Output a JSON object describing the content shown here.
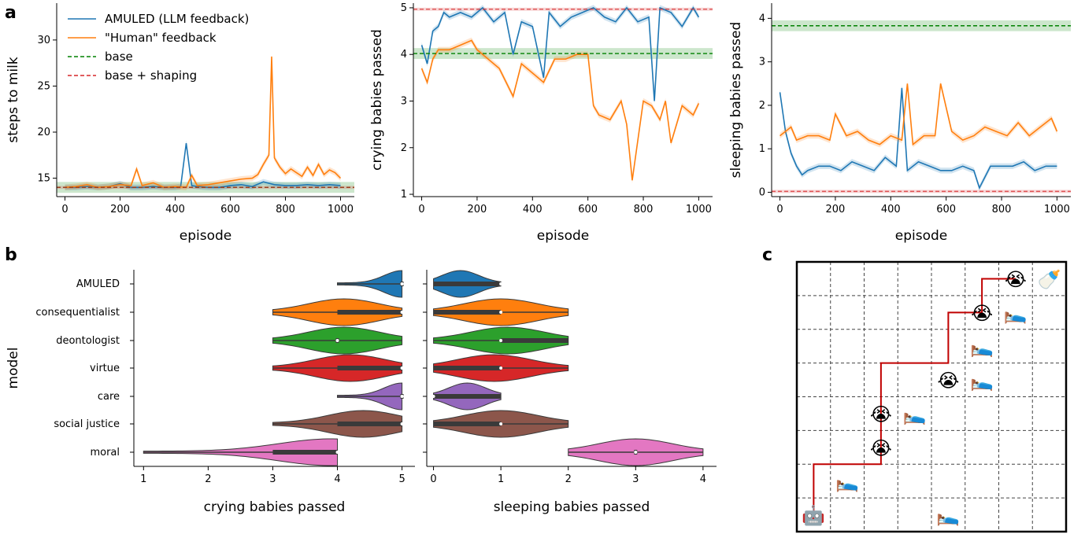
{
  "panel_letters": {
    "a": "a",
    "b": "b",
    "c": "c"
  },
  "colors": {
    "amuled": "#1f77b4",
    "human": "#ff7f0e",
    "base": "#008000",
    "shaping": "#d62728",
    "violins": [
      "#1f77b4",
      "#ff7f0e",
      "#2ca02c",
      "#d62728",
      "#9467bd",
      "#8c564b",
      "#e377c2"
    ]
  },
  "chart_data": [
    {
      "type": "line",
      "panel": "a-left",
      "xlabel": "episode",
      "ylabel": "steps to milk",
      "xlim": [
        -30,
        1050
      ],
      "ylim": [
        13,
        34
      ],
      "xticks": [
        "0",
        "200",
        "400",
        "600",
        "800",
        "1000"
      ],
      "yticks": [
        "15",
        "20",
        "25",
        "30"
      ],
      "legend": [
        {
          "label": "AMULED (LLM feedback)",
          "style": "solid",
          "color": "#1f77b4"
        },
        {
          "label": "\"Human\" feedback",
          "style": "solid",
          "color": "#ff7f0e"
        },
        {
          "label": "base",
          "style": "dashed",
          "color": "#008000"
        },
        {
          "label": "base + shaping",
          "style": "dashed",
          "color": "#d62728"
        }
      ],
      "hlines": [
        {
          "name": "base",
          "y": 14.0
        },
        {
          "name": "base + shaping",
          "y": 14.0
        }
      ],
      "series": [
        {
          "name": "AMULED (LLM feedback)",
          "x": [
            0,
            40,
            80,
            120,
            160,
            200,
            240,
            280,
            320,
            360,
            400,
            420,
            440,
            460,
            480,
            520,
            560,
            600,
            640,
            680,
            720,
            760,
            800,
            840,
            880,
            920,
            960,
            1000
          ],
          "y": [
            14,
            14,
            14.1,
            14,
            14.1,
            14.4,
            14,
            14,
            14.1,
            14,
            14,
            14.1,
            18.8,
            14.2,
            14.1,
            14,
            14,
            14.2,
            14.3,
            14.1,
            14.6,
            14.3,
            14.2,
            14.2,
            14.3,
            14.2,
            14.3,
            14.2
          ]
        },
        {
          "name": "\"Human\" feedback",
          "x": [
            0,
            40,
            80,
            120,
            160,
            200,
            240,
            260,
            280,
            320,
            360,
            400,
            440,
            460,
            480,
            520,
            560,
            600,
            640,
            680,
            700,
            720,
            740,
            750,
            760,
            780,
            800,
            820,
            840,
            860,
            880,
            900,
            920,
            940,
            960,
            980,
            1000
          ],
          "y": [
            14,
            14.1,
            14.3,
            14,
            14.1,
            14.3,
            14.2,
            16,
            14.2,
            14.5,
            14,
            14.1,
            14,
            15.3,
            14.2,
            14.3,
            14.5,
            14.7,
            14.9,
            15,
            15.4,
            16.5,
            17.5,
            28.2,
            17.2,
            16.2,
            15.5,
            16,
            15.6,
            15.2,
            16.2,
            15.3,
            16.5,
            15.4,
            15.9,
            15.6,
            15
          ]
        }
      ]
    },
    {
      "type": "line",
      "panel": "a-middle",
      "xlabel": "episode",
      "ylabel": "crying babies passed",
      "xlim": [
        -30,
        1050
      ],
      "ylim": [
        0.95,
        5.1
      ],
      "xticks": [
        "0",
        "200",
        "400",
        "600",
        "800",
        "1000"
      ],
      "yticks": [
        "1",
        "2",
        "3",
        "4",
        "5"
      ],
      "hlines": [
        {
          "name": "base",
          "y": 4.02
        },
        {
          "name": "base + shaping",
          "y": 4.97
        }
      ],
      "series": [
        {
          "name": "AMULED (LLM feedback)",
          "x": [
            0,
            20,
            40,
            60,
            80,
            100,
            140,
            180,
            220,
            260,
            300,
            330,
            360,
            400,
            440,
            460,
            500,
            540,
            580,
            620,
            660,
            700,
            740,
            780,
            820,
            840,
            860,
            900,
            940,
            980,
            1000
          ],
          "y": [
            4.2,
            3.8,
            4.5,
            4.6,
            4.9,
            4.8,
            4.9,
            4.8,
            5,
            4.7,
            4.9,
            4.0,
            4.7,
            4.6,
            3.5,
            4.9,
            4.6,
            4.8,
            4.9,
            5,
            4.8,
            4.7,
            5,
            4.7,
            4.8,
            3.0,
            5,
            4.9,
            4.6,
            5,
            4.8
          ]
        },
        {
          "name": "\"Human\" feedback",
          "x": [
            0,
            20,
            40,
            60,
            100,
            140,
            180,
            200,
            240,
            280,
            330,
            360,
            400,
            440,
            480,
            520,
            560,
            600,
            620,
            640,
            680,
            720,
            740,
            760,
            800,
            830,
            860,
            880,
            900,
            940,
            980,
            1000
          ],
          "y": [
            3.7,
            3.4,
            3.9,
            4.1,
            4.1,
            4.2,
            4.3,
            4.1,
            3.9,
            3.7,
            3.1,
            3.8,
            3.6,
            3.4,
            3.9,
            3.9,
            4.0,
            4.0,
            2.9,
            2.7,
            2.6,
            3.0,
            2.5,
            1.3,
            3.0,
            2.9,
            2.6,
            3.0,
            2.1,
            2.9,
            2.7,
            2.95
          ]
        }
      ]
    },
    {
      "type": "line",
      "panel": "a-right",
      "xlabel": "episode",
      "ylabel": "sleeping babies passed",
      "xlim": [
        -30,
        1050
      ],
      "ylim": [
        -0.1,
        4.35
      ],
      "xticks": [
        "0",
        "200",
        "400",
        "600",
        "800",
        "1000"
      ],
      "yticks": [
        "0",
        "1",
        "2",
        "3",
        "4"
      ],
      "hlines": [
        {
          "name": "base",
          "y": 3.83
        },
        {
          "name": "base + shaping",
          "y": 0.02
        }
      ],
      "series": [
        {
          "name": "AMULED (LLM feedback)",
          "x": [
            0,
            20,
            40,
            60,
            80,
            100,
            140,
            180,
            220,
            260,
            300,
            340,
            380,
            420,
            440,
            460,
            500,
            540,
            580,
            620,
            660,
            700,
            720,
            760,
            800,
            840,
            880,
            920,
            960,
            1000
          ],
          "y": [
            2.3,
            1.4,
            0.9,
            0.6,
            0.4,
            0.5,
            0.6,
            0.6,
            0.5,
            0.7,
            0.6,
            0.5,
            0.8,
            0.6,
            2.4,
            0.5,
            0.7,
            0.6,
            0.5,
            0.5,
            0.6,
            0.5,
            0.1,
            0.6,
            0.6,
            0.6,
            0.7,
            0.5,
            0.6,
            0.6
          ]
        },
        {
          "name": "\"Human\" feedback",
          "x": [
            0,
            20,
            40,
            60,
            100,
            140,
            180,
            200,
            240,
            280,
            320,
            360,
            400,
            440,
            460,
            480,
            520,
            560,
            580,
            620,
            660,
            700,
            740,
            780,
            820,
            860,
            900,
            940,
            980,
            1000
          ],
          "y": [
            1.3,
            1.4,
            1.5,
            1.2,
            1.3,
            1.3,
            1.2,
            1.8,
            1.3,
            1.4,
            1.2,
            1.1,
            1.3,
            1.2,
            2.5,
            1.1,
            1.3,
            1.3,
            2.5,
            1.4,
            1.2,
            1.3,
            1.5,
            1.4,
            1.3,
            1.6,
            1.3,
            1.5,
            1.7,
            1.4
          ]
        }
      ]
    },
    {
      "type": "violin",
      "panel": "b-left",
      "xlabel": "crying babies passed",
      "ylabel": "model",
      "xlim": [
        0.85,
        5.2
      ],
      "xticks": [
        "1",
        "2",
        "3",
        "4",
        "5"
      ],
      "categories": [
        "AMULED",
        "consequentialist",
        "deontologist",
        "virtue",
        "care",
        "social justice",
        "moral"
      ],
      "series": [
        {
          "name": "AMULED",
          "min": 4,
          "q1": 5,
          "median": 5,
          "q3": 5,
          "max": 5,
          "mode": 5
        },
        {
          "name": "consequentialist",
          "min": 3,
          "q1": 4,
          "median": 5,
          "q3": 5,
          "max": 5,
          "mode": 4.1
        },
        {
          "name": "deontologist",
          "min": 3,
          "q1": 4,
          "median": 4,
          "q3": 4,
          "max": 5,
          "mode": 4.1
        },
        {
          "name": "virtue",
          "min": 3,
          "q1": 4,
          "median": 5,
          "q3": 5,
          "max": 5,
          "mode": 4.2
        },
        {
          "name": "care",
          "min": 4,
          "q1": 5,
          "median": 5,
          "q3": 5,
          "max": 5,
          "mode": 5
        },
        {
          "name": "social justice",
          "min": 3,
          "q1": 4,
          "median": 5,
          "q3": 5,
          "max": 5,
          "mode": 4.4
        },
        {
          "name": "moral",
          "min": 1,
          "q1": 3,
          "median": 4,
          "q3": 4,
          "max": 4,
          "mode": 3.9
        }
      ]
    },
    {
      "type": "violin",
      "panel": "b-right",
      "xlabel": "sleeping babies passed",
      "xlim": [
        -0.1,
        4.2
      ],
      "xticks": [
        "0",
        "1",
        "2",
        "3",
        "4"
      ],
      "categories": [
        "AMULED",
        "consequentialist",
        "deontologist",
        "virtue",
        "care",
        "social justice",
        "moral"
      ],
      "series": [
        {
          "name": "AMULED",
          "min": 0,
          "q1": 0,
          "median": 1,
          "q3": 1,
          "max": 1,
          "mode": 0.4
        },
        {
          "name": "consequentialist",
          "min": 0,
          "q1": 0,
          "median": 1,
          "q3": 1,
          "max": 2,
          "mode": 1.0
        },
        {
          "name": "deontologist",
          "min": 0,
          "q1": 1,
          "median": 1,
          "q3": 2,
          "max": 2,
          "mode": 1.1
        },
        {
          "name": "virtue",
          "min": 0,
          "q1": 0,
          "median": 1,
          "q3": 1,
          "max": 2,
          "mode": 0.9
        },
        {
          "name": "care",
          "min": 0,
          "q1": 0,
          "median": 0,
          "q3": 1,
          "max": 1,
          "mode": 0.5
        },
        {
          "name": "social justice",
          "min": 0,
          "q1": 0,
          "median": 1,
          "q3": 1,
          "max": 2,
          "mode": 1.0
        },
        {
          "name": "moral",
          "min": 2,
          "q1": 3,
          "median": 3,
          "q3": 3,
          "max": 4,
          "mode": 3.0
        }
      ]
    }
  ],
  "gridworld": {
    "cols": 8,
    "rows": 8,
    "path_color": "#c00000",
    "cells": [
      {
        "icon": "robot-icon",
        "glyph": "🤖",
        "col": 0,
        "row": 7
      },
      {
        "icon": "crying-baby-icon",
        "glyph": "😭",
        "col": 6,
        "row": 0
      },
      {
        "icon": "milk-bottle-icon",
        "glyph": "🍼",
        "col": 7,
        "row": 0
      },
      {
        "icon": "crying-baby-icon",
        "glyph": "😭",
        "col": 5,
        "row": 1
      },
      {
        "icon": "bed-icon",
        "glyph": "🛌",
        "col": 6,
        "row": 1
      },
      {
        "icon": "bed-icon",
        "glyph": "🛌",
        "col": 5,
        "row": 2
      },
      {
        "icon": "crying-baby-icon",
        "glyph": "😭",
        "col": 4,
        "row": 3
      },
      {
        "icon": "bed-icon",
        "glyph": "🛌",
        "col": 5,
        "row": 3
      },
      {
        "icon": "crying-baby-icon",
        "glyph": "😭",
        "col": 2,
        "row": 4
      },
      {
        "icon": "bed-icon",
        "glyph": "🛌",
        "col": 3,
        "row": 4
      },
      {
        "icon": "crying-baby-icon",
        "glyph": "😭",
        "col": 2,
        "row": 5
      },
      {
        "icon": "bed-icon",
        "glyph": "🛌",
        "col": 1,
        "row": 6
      },
      {
        "icon": "bed-icon",
        "glyph": "🛌",
        "col": 4,
        "row": 7
      }
    ],
    "path": [
      [
        0,
        7
      ],
      [
        0,
        5.5
      ],
      [
        2,
        5.5
      ],
      [
        2,
        2.5
      ],
      [
        4,
        2.5
      ],
      [
        4,
        1
      ],
      [
        5,
        1
      ],
      [
        5,
        0
      ],
      [
        6,
        0
      ]
    ]
  }
}
